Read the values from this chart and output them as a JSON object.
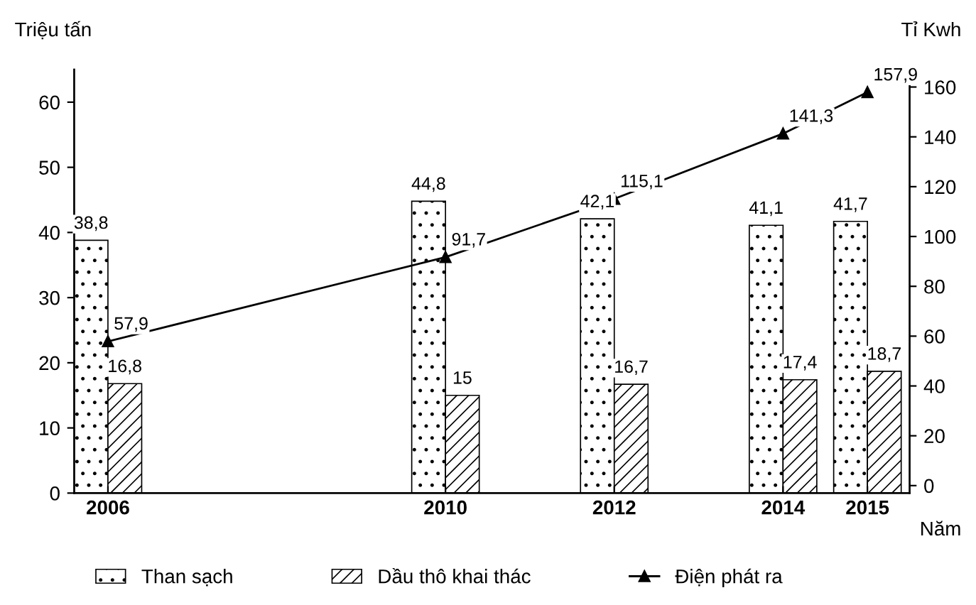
{
  "chart_data": {
    "type": "bar",
    "xlabel": "Năm",
    "ylabel": "Triệu tấn",
    "y2label": "Tỉ Kwh",
    "x": [
      2006,
      2010,
      2012,
      2014,
      2015
    ],
    "xlim": [
      2005.6,
      2015.5
    ],
    "xticks": [
      2006,
      2010,
      2012,
      2014,
      2015
    ],
    "ylim": [
      0,
      65
    ],
    "yticks": [
      0,
      10,
      20,
      30,
      40,
      50,
      60
    ],
    "y2lim": [
      -3,
      167
    ],
    "y2ticks": [
      0,
      20,
      40,
      60,
      80,
      100,
      120,
      140,
      160
    ],
    "series": [
      {
        "name": "Than sạch",
        "color": "#000000",
        "values": [
          38.8,
          44.8,
          42.1,
          41.1,
          41.7
        ],
        "value_labels": [
          "38,8",
          "44,8",
          "42,1",
          "41,1",
          "41,7"
        ]
      },
      {
        "name": "Dầu thô khai thác",
        "color": "#000000",
        "values": [
          16.8,
          15,
          16.7,
          17.4,
          18.7
        ],
        "value_labels": [
          "16,8",
          "15",
          "16,7",
          "17,4",
          "18,7"
        ]
      },
      {
        "name": "Điện phát ra",
        "type": "line",
        "axis": "y2",
        "color": "#000000",
        "marker": "triangle",
        "values": [
          57.9,
          91.7,
          115.1,
          141.3,
          157.9
        ],
        "value_labels": [
          "57,9",
          "91,7",
          "115,1",
          "141,3",
          "157,9"
        ]
      }
    ],
    "legend": "bottom",
    "grid": false
  }
}
